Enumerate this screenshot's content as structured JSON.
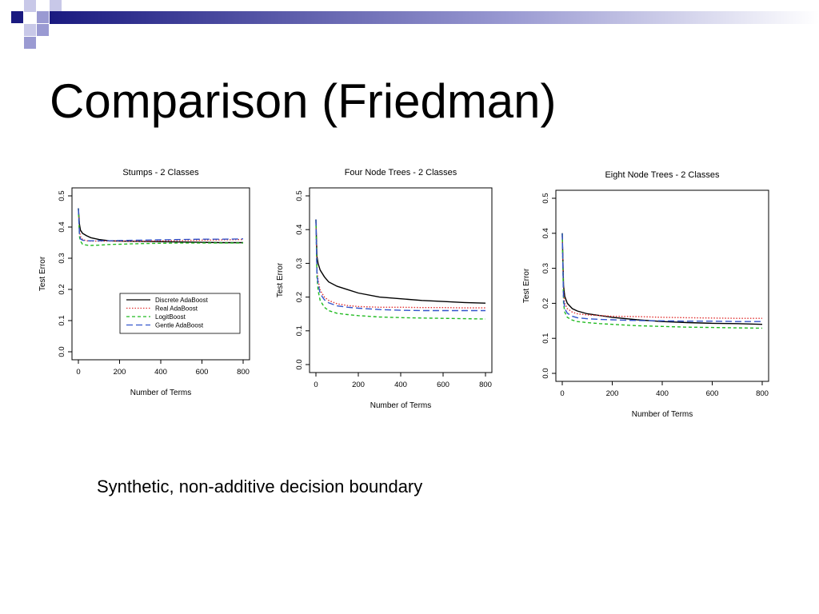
{
  "slide": {
    "title": "Comparison (Friedman)",
    "caption": "Synthetic, non-additive decision boundary",
    "theme_colors": {
      "navy": "#1a1a80",
      "lavender": "#9a9ad2",
      "pale": "#c8c8e8"
    }
  },
  "chart_data": [
    {
      "type": "line",
      "title": "Stumps - 2 Classes",
      "xlabel": "Number of Terms",
      "ylabel": "Test Error",
      "xlim": [
        0,
        800
      ],
      "ylim": [
        0,
        0.5
      ],
      "xticks": [
        "0",
        "200",
        "400",
        "600",
        "800"
      ],
      "yticks": [
        "0.0",
        "0.1",
        "0.2",
        "0.3",
        "0.4",
        "0.5"
      ],
      "legend": "inside-bottom-right",
      "legend_entries": [
        "Discrete AdaBoost",
        "Real AdaBoost",
        "LogitBoost",
        "Gentle AdaBoost"
      ],
      "series": [
        {
          "name": "Discrete AdaBoost",
          "color": "#000000",
          "dash": "solid",
          "x": [
            0,
            5,
            10,
            20,
            40,
            60,
            100,
            150,
            200,
            300,
            400,
            500,
            600,
            700,
            800
          ],
          "y": [
            0.46,
            0.41,
            0.39,
            0.38,
            0.372,
            0.366,
            0.36,
            0.356,
            0.355,
            0.354,
            0.353,
            0.352,
            0.351,
            0.35,
            0.35
          ]
        },
        {
          "name": "Real AdaBoost",
          "color": "#e03030",
          "dash": "dotted",
          "x": [
            0,
            5,
            10,
            20,
            40,
            60,
            100,
            150,
            200,
            300,
            400,
            500,
            600,
            700,
            800
          ],
          "y": [
            0.46,
            0.39,
            0.37,
            0.36,
            0.356,
            0.355,
            0.355,
            0.355,
            0.355,
            0.355,
            0.356,
            0.357,
            0.358,
            0.359,
            0.36
          ]
        },
        {
          "name": "LogitBoost",
          "color": "#22bb22",
          "dash": "dashed",
          "x": [
            0,
            5,
            10,
            20,
            40,
            60,
            100,
            150,
            200,
            300,
            400,
            500,
            600,
            700,
            800
          ],
          "y": [
            0.46,
            0.37,
            0.355,
            0.345,
            0.342,
            0.341,
            0.342,
            0.344,
            0.345,
            0.347,
            0.348,
            0.349,
            0.349,
            0.349,
            0.349
          ]
        },
        {
          "name": "Gentle AdaBoost",
          "color": "#3355cc",
          "dash": "longdash",
          "x": [
            0,
            5,
            10,
            20,
            40,
            60,
            100,
            150,
            200,
            300,
            400,
            500,
            600,
            700,
            800
          ],
          "y": [
            0.46,
            0.38,
            0.362,
            0.358,
            0.356,
            0.356,
            0.356,
            0.356,
            0.357,
            0.358,
            0.359,
            0.36,
            0.361,
            0.361,
            0.362
          ]
        }
      ]
    },
    {
      "type": "line",
      "title": "Four Node Trees - 2 Classes",
      "xlabel": "Number of Terms",
      "ylabel": "Test Error",
      "xlim": [
        0,
        800
      ],
      "ylim": [
        0,
        0.5
      ],
      "xticks": [
        "0",
        "200",
        "400",
        "600",
        "800"
      ],
      "yticks": [
        "0.0",
        "0.1",
        "0.2",
        "0.3",
        "0.4",
        "0.5"
      ],
      "series": [
        {
          "name": "Discrete AdaBoost",
          "color": "#000000",
          "dash": "solid",
          "x": [
            0,
            5,
            10,
            20,
            40,
            60,
            100,
            150,
            200,
            300,
            400,
            500,
            600,
            700,
            800
          ],
          "y": [
            0.43,
            0.32,
            0.3,
            0.28,
            0.26,
            0.245,
            0.232,
            0.222,
            0.212,
            0.2,
            0.195,
            0.19,
            0.187,
            0.184,
            0.182
          ]
        },
        {
          "name": "Real AdaBoost",
          "color": "#e03030",
          "dash": "dotted",
          "x": [
            0,
            5,
            10,
            20,
            40,
            60,
            100,
            150,
            200,
            300,
            400,
            500,
            600,
            700,
            800
          ],
          "y": [
            0.43,
            0.28,
            0.25,
            0.22,
            0.2,
            0.19,
            0.18,
            0.175,
            0.172,
            0.17,
            0.17,
            0.169,
            0.169,
            0.168,
            0.168
          ]
        },
        {
          "name": "LogitBoost",
          "color": "#22bb22",
          "dash": "dashed",
          "x": [
            0,
            5,
            10,
            20,
            40,
            60,
            100,
            150,
            200,
            300,
            400,
            500,
            600,
            700,
            800
          ],
          "y": [
            0.43,
            0.26,
            0.22,
            0.19,
            0.17,
            0.16,
            0.152,
            0.148,
            0.145,
            0.141,
            0.139,
            0.138,
            0.137,
            0.136,
            0.135
          ]
        },
        {
          "name": "Gentle AdaBoost",
          "color": "#3355cc",
          "dash": "longdash",
          "x": [
            0,
            5,
            10,
            20,
            40,
            60,
            100,
            150,
            200,
            300,
            400,
            500,
            600,
            700,
            800
          ],
          "y": [
            0.43,
            0.27,
            0.24,
            0.21,
            0.192,
            0.183,
            0.174,
            0.17,
            0.167,
            0.163,
            0.161,
            0.16,
            0.16,
            0.16,
            0.16
          ]
        }
      ]
    },
    {
      "type": "line",
      "title": "Eight Node Trees  - 2 Classes",
      "xlabel": "Number of Terms",
      "ylabel": "Test Error",
      "xlim": [
        0,
        800
      ],
      "ylim": [
        0,
        0.5
      ],
      "xticks": [
        "0",
        "200",
        "400",
        "600",
        "800"
      ],
      "yticks": [
        "0.0",
        "0.1",
        "0.2",
        "0.3",
        "0.4",
        "0.5"
      ],
      "series": [
        {
          "name": "Discrete AdaBoost",
          "color": "#000000",
          "dash": "solid",
          "x": [
            0,
            5,
            10,
            20,
            40,
            60,
            100,
            150,
            200,
            300,
            400,
            500,
            600,
            700,
            800
          ],
          "y": [
            0.4,
            0.25,
            0.22,
            0.2,
            0.185,
            0.178,
            0.17,
            0.165,
            0.16,
            0.153,
            0.148,
            0.145,
            0.143,
            0.142,
            0.14
          ]
        },
        {
          "name": "Real AdaBoost",
          "color": "#e03030",
          "dash": "dotted",
          "x": [
            0,
            5,
            10,
            20,
            40,
            60,
            100,
            150,
            200,
            300,
            400,
            500,
            600,
            700,
            800
          ],
          "y": [
            0.4,
            0.23,
            0.2,
            0.185,
            0.175,
            0.17,
            0.167,
            0.165,
            0.163,
            0.162,
            0.16,
            0.159,
            0.158,
            0.157,
            0.157
          ]
        },
        {
          "name": "LogitBoost",
          "color": "#22bb22",
          "dash": "dashed",
          "x": [
            0,
            5,
            10,
            20,
            40,
            60,
            100,
            150,
            200,
            300,
            400,
            500,
            600,
            700,
            800
          ],
          "y": [
            0.4,
            0.2,
            0.175,
            0.16,
            0.152,
            0.148,
            0.145,
            0.142,
            0.14,
            0.136,
            0.134,
            0.132,
            0.131,
            0.13,
            0.129
          ]
        },
        {
          "name": "Gentle AdaBoost",
          "color": "#3355cc",
          "dash": "longdash",
          "x": [
            0,
            5,
            10,
            20,
            40,
            60,
            100,
            150,
            200,
            300,
            400,
            500,
            600,
            700,
            800
          ],
          "y": [
            0.4,
            0.21,
            0.185,
            0.172,
            0.163,
            0.159,
            0.156,
            0.154,
            0.153,
            0.151,
            0.15,
            0.149,
            0.149,
            0.148,
            0.148
          ]
        }
      ]
    }
  ]
}
